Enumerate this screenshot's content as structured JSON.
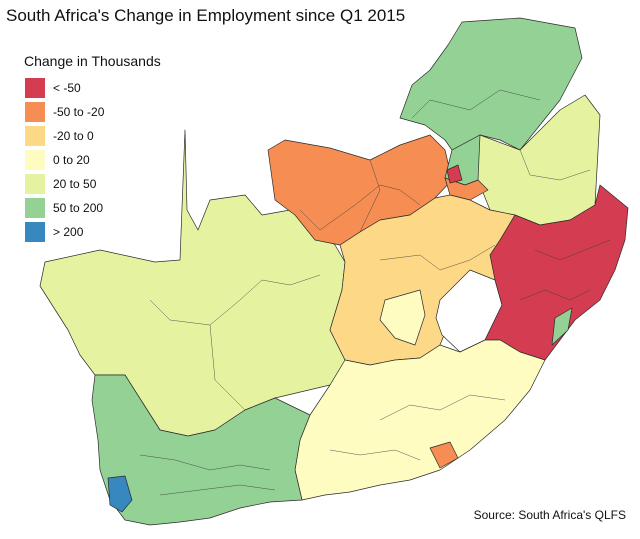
{
  "title": "South Africa's Change in Employment since Q1 2015",
  "legend": {
    "title": "Change in Thousands",
    "items": [
      {
        "label": "< -50",
        "color": "#d43d51"
      },
      {
        "label": "-50 to -20",
        "color": "#f68d52"
      },
      {
        "label": "-20 to 0",
        "color": "#fdd987"
      },
      {
        "label": "0 to 20",
        "color": "#fefcc1"
      },
      {
        "label": "20 to 50",
        "color": "#e5f3a0"
      },
      {
        "label": "50 to 200",
        "color": "#93d195"
      },
      {
        "label": "> 200",
        "color": "#3688be"
      }
    ]
  },
  "source": "Source: South Africa's QLFS"
}
